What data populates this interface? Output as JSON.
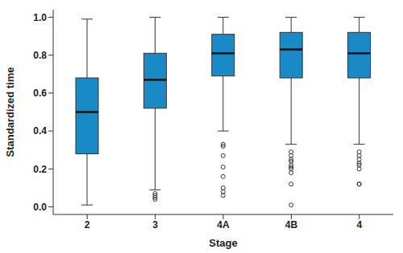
{
  "chart_data": {
    "type": "box",
    "x_label": "Stage",
    "y_label": "Standardized time",
    "categories": [
      "2",
      "3",
      "4A",
      "4B",
      "4"
    ],
    "boxes": [
      {
        "min": 0.01,
        "q1": 0.28,
        "median": 0.5,
        "q3": 0.68,
        "max": 0.99,
        "outliers": []
      },
      {
        "min": 0.09,
        "q1": 0.52,
        "median": 0.67,
        "q3": 0.81,
        "max": 1.0,
        "outliers": [
          0.07,
          0.06,
          0.05,
          0.04
        ]
      },
      {
        "min": 0.4,
        "q1": 0.69,
        "median": 0.81,
        "q3": 0.91,
        "max": 1.0,
        "outliers": [
          0.33,
          0.32,
          0.27,
          0.21,
          0.16,
          0.1,
          0.08,
          0.06
        ]
      },
      {
        "min": 0.33,
        "q1": 0.68,
        "median": 0.83,
        "q3": 0.92,
        "max": 1.0,
        "outliers": [
          0.29,
          0.27,
          0.25,
          0.24,
          0.22,
          0.21,
          0.2,
          0.18,
          0.12,
          0.01
        ]
      },
      {
        "min": 0.33,
        "q1": 0.68,
        "median": 0.81,
        "q3": 0.92,
        "max": 1.0,
        "outliers": [
          0.29,
          0.27,
          0.25,
          0.23,
          0.22,
          0.2,
          0.12,
          0.12
        ]
      }
    ],
    "color": "#1a8ac6",
    "ylim": [
      -0.04,
      1.04
    ],
    "yticks": [
      {
        "value": 0,
        "label": "0.0"
      },
      {
        "value": 0.2,
        "label": "0.2"
      },
      {
        "value": 0.4,
        "label": "0.4"
      },
      {
        "value": 0.6,
        "label": "0.6"
      },
      {
        "value": 0.8,
        "label": "0.8"
      },
      {
        "value": 1,
        "label": "1.0"
      }
    ],
    "grid": false
  }
}
